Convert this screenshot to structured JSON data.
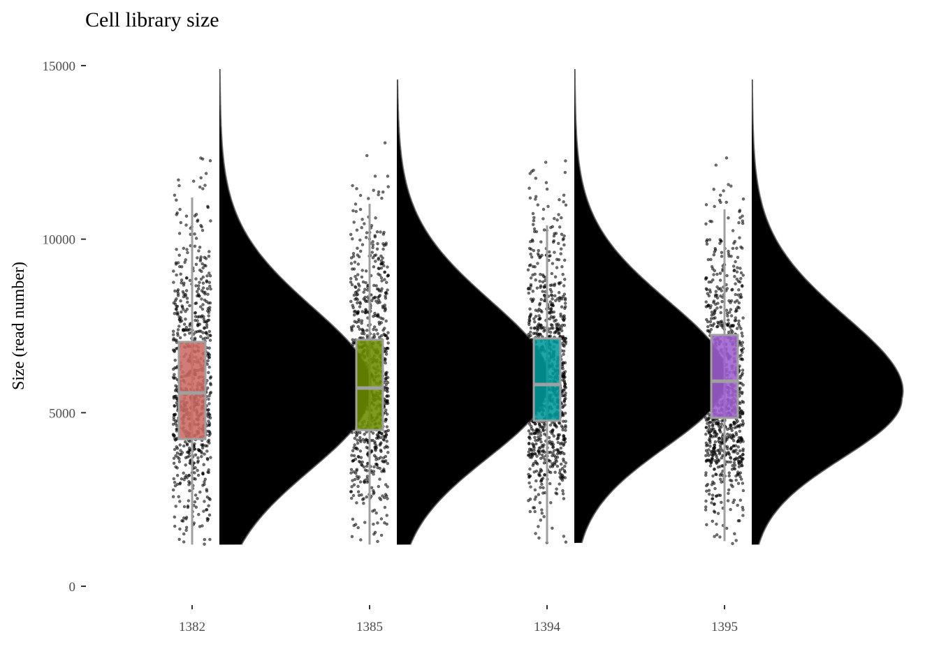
{
  "chart_data": {
    "type": "raincloud",
    "title": "Cell library size",
    "xlabel": "",
    "ylabel": "Size (read number)",
    "ylim": [
      -1200,
      15000
    ],
    "yticks": [
      0,
      5000,
      10000,
      15000
    ],
    "ytick_labels": [
      "0",
      "5000",
      "10000",
      "15000"
    ],
    "categories": [
      "1382",
      "1385",
      "1394",
      "1395"
    ],
    "grid": false,
    "legend": "none",
    "groups": [
      {
        "name": "1382",
        "box": {
          "whisker_low": 1200,
          "q1": 4240,
          "median": 5570,
          "q3": 7040,
          "whisker_high": 11200
        },
        "density": {
          "mode": 5600,
          "sd_low": 2250,
          "sd_high": 2400,
          "min": 1200,
          "max": 14900
        },
        "box_color": "#CD6A62",
        "density_color": "#F9B9B5",
        "n_points": 800
      },
      {
        "name": "1385",
        "box": {
          "whisker_low": 1200,
          "q1": 4500,
          "median": 5710,
          "q3": 7100,
          "whisker_high": 11020
        },
        "density": {
          "mode": 5800,
          "sd_low": 2100,
          "sd_high": 2400,
          "min": 1200,
          "max": 14600
        },
        "box_color": "#6B8E00",
        "density_color": "#C0D580",
        "n_points": 800
      },
      {
        "name": "1394",
        "box": {
          "whisker_low": 1250,
          "q1": 4770,
          "median": 5810,
          "q3": 7140,
          "whisker_high": 10400
        },
        "density": {
          "mode": 5900,
          "sd_low": 1900,
          "sd_high": 2300,
          "min": 1250,
          "max": 14900
        },
        "box_color": "#009A9B",
        "density_color": "#80DEDE",
        "n_points": 1000
      },
      {
        "name": "1395",
        "box": {
          "whisker_low": 1300,
          "q1": 4850,
          "median": 5910,
          "q3": 7240,
          "whisker_high": 10860
        },
        "density": {
          "mode": 5400,
          "sd_low": 1700,
          "sd_high": 2350,
          "min": 1200,
          "max": 14600
        },
        "box_color": "#A060D0",
        "density_color": "#E2BBFC",
        "n_points": 900
      }
    ]
  }
}
